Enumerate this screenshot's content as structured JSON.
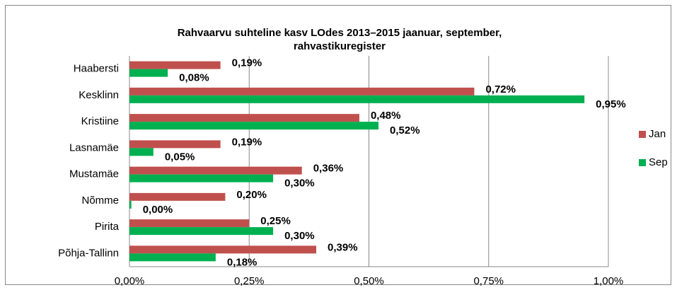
{
  "chart_data": {
    "type": "bar",
    "orientation": "horizontal",
    "title": [
      "Rahvaarvu suhteline kasv LOdes 2013–2015 jaanuar, september,",
      "rahvastikuregister"
    ],
    "categories": [
      "Haabersti",
      "Kesklinn",
      "Kristiine",
      "Lasnamäe",
      "Mustamäe",
      "Nõmme",
      "Pirita",
      "Põhja-Tallinn"
    ],
    "series": [
      {
        "name": "Jan",
        "color": "#c0504d",
        "values": [
          0.19,
          0.72,
          0.48,
          0.19,
          0.36,
          0.2,
          0.25,
          0.39
        ],
        "value_labels": [
          "0,19%",
          "0,72%",
          "0,48%",
          "0,19%",
          "0,36%",
          "0,20%",
          "0,25%",
          "0,39%"
        ]
      },
      {
        "name": "Sep",
        "color": "#00b050",
        "values": [
          0.08,
          0.95,
          0.52,
          0.05,
          0.3,
          0.004,
          0.3,
          0.18
        ],
        "value_labels": [
          "0,08%",
          "0,95%",
          "0,52%",
          "0,05%",
          "0,30%",
          "0,00%",
          "0,30%",
          "0,18%"
        ]
      }
    ],
    "xlim": [
      0,
      1.0
    ],
    "xticks": [
      {
        "value": 0,
        "label": "0,00%"
      },
      {
        "value": 0.25,
        "label": "0,25%"
      },
      {
        "value": 0.5,
        "label": "0,50%"
      },
      {
        "value": 0.75,
        "label": "0,75%"
      },
      {
        "value": 1.0,
        "label": "1,00%"
      }
    ],
    "grid": true,
    "legend": "right"
  }
}
